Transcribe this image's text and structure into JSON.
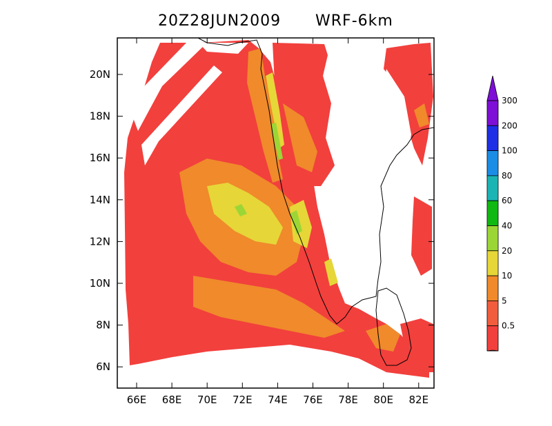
{
  "header": {
    "time_label": "20Z28JUN2009",
    "model_label": "WRF-6km"
  },
  "map": {
    "lat_labels": [
      "20N",
      "18N",
      "16N",
      "14N",
      "12N",
      "10N",
      "8N",
      "6N"
    ],
    "lon_labels": [
      "66E",
      "68E",
      "70E",
      "72E",
      "74E",
      "76E",
      "78E",
      "80E",
      "82E"
    ]
  },
  "colorbar": {
    "levels": [
      "300",
      "200",
      "100",
      "80",
      "60",
      "40",
      "20",
      "10",
      "5",
      "0.5"
    ],
    "colors": [
      "#7d0fd6",
      "#1f2fe6",
      "#1a8de6",
      "#1bb4b4",
      "#11b811",
      "#9cd636",
      "#e6d638",
      "#f08a2b",
      "#f25e3d",
      "#f2403d"
    ]
  },
  "colors": {
    "light_rain": "#f2403d",
    "moderate_rain": "#f08a2b",
    "heavy_rain": "#e6d638",
    "very_heavy_rain": "#9cd636",
    "coastline": "#000000"
  }
}
